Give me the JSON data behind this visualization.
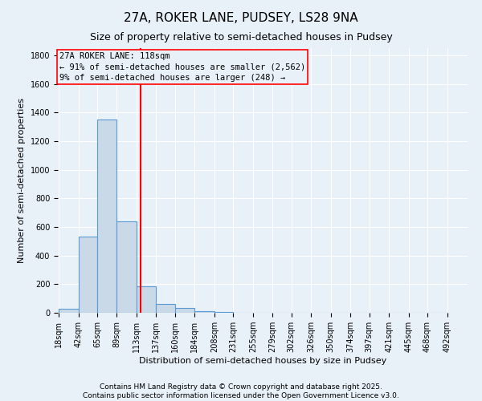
{
  "title": "27A, ROKER LANE, PUDSEY, LS28 9NA",
  "subtitle": "Size of property relative to semi-detached houses in Pudsey",
  "xlabel": "Distribution of semi-detached houses by size in Pudsey",
  "ylabel": "Number of semi-detached properties",
  "bin_edges": [
    18,
    42,
    65,
    89,
    113,
    137,
    160,
    184,
    208,
    231,
    255,
    279,
    302,
    326,
    350,
    374,
    397,
    421,
    445,
    468,
    492
  ],
  "bar_heights": [
    30,
    530,
    1350,
    640,
    185,
    60,
    35,
    10,
    5,
    2,
    1,
    0,
    0,
    0,
    0,
    0,
    0,
    0,
    0,
    0
  ],
  "bar_color": "#c9d9e8",
  "bar_edge_color": "#5b9bd5",
  "vline_x": 118,
  "vline_color": "red",
  "annotation_title": "27A ROKER LANE: 118sqm",
  "annotation_line1": "← 91% of semi-detached houses are smaller (2,562)",
  "annotation_line2": "9% of semi-detached houses are larger (248) →",
  "annotation_box_color": "red",
  "ylim": [
    0,
    1850
  ],
  "yticks": [
    0,
    200,
    400,
    600,
    800,
    1000,
    1200,
    1400,
    1600,
    1800
  ],
  "footnote1": "Contains HM Land Registry data © Crown copyright and database right 2025.",
  "footnote2": "Contains public sector information licensed under the Open Government Licence v3.0.",
  "bg_color": "#e8f0f8",
  "grid_color": "white",
  "title_fontsize": 11,
  "subtitle_fontsize": 9,
  "axis_label_fontsize": 8,
  "tick_fontsize": 7,
  "annotation_fontsize": 7.5,
  "footnote_fontsize": 6.5
}
